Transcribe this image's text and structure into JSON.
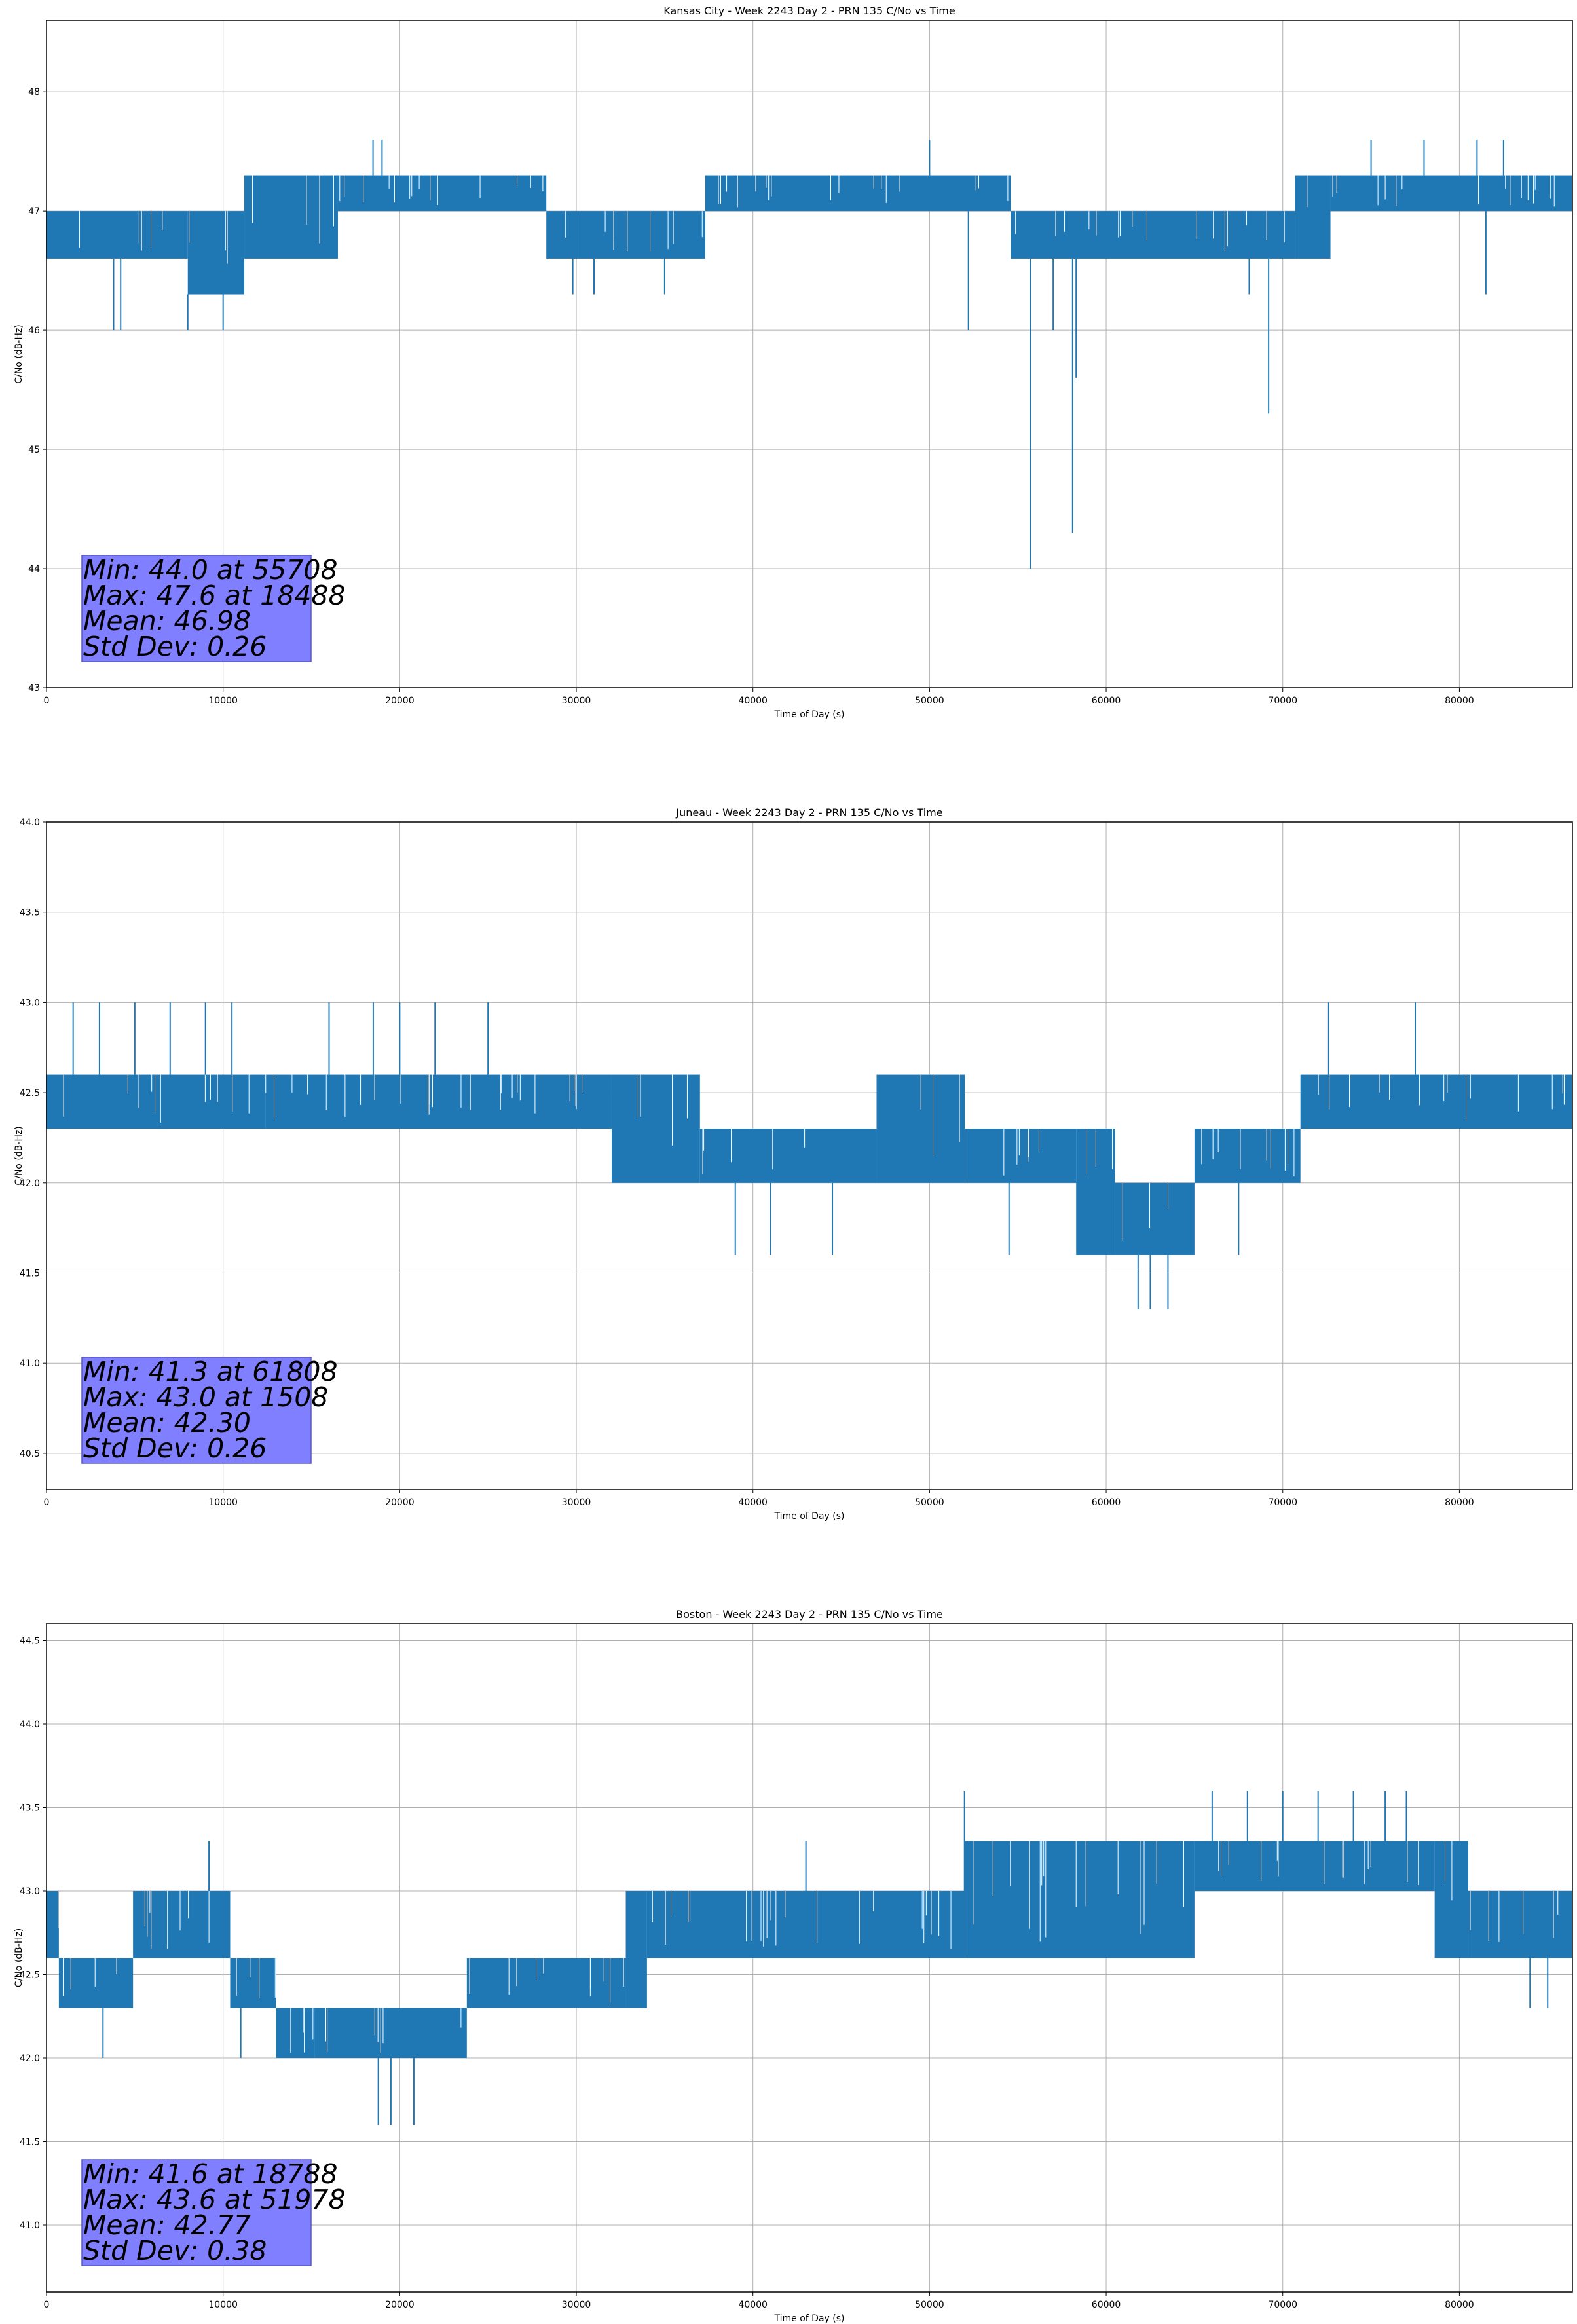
{
  "chart_data": [
    {
      "type": "line",
      "title": "Kansas City - Week 2243 Day 2 - PRN 135 C/No vs Time",
      "xlabel": "Time of Day (s)",
      "ylabel": "C/No (dB-Hz)",
      "xlim": [
        0,
        86400
      ],
      "ylim": [
        43.0,
        48.6
      ],
      "xticks": [
        0,
        10000,
        20000,
        30000,
        40000,
        50000,
        60000,
        70000,
        80000
      ],
      "yticks": [
        43,
        44,
        45,
        46,
        47,
        48
      ],
      "grid": true,
      "color": "#1f77b4",
      "band_segments": [
        {
          "x": [
            0,
            8000
          ],
          "low": 46.6,
          "high": 47.0
        },
        {
          "x": [
            8000,
            11200
          ],
          "low": 46.3,
          "high": 47.0
        },
        {
          "x": [
            11200,
            16500
          ],
          "low": 46.6,
          "high": 47.3
        },
        {
          "x": [
            16500,
            28300
          ],
          "low": 47.0,
          "high": 47.3
        },
        {
          "x": [
            28300,
            30200
          ],
          "low": 46.6,
          "high": 47.0
        },
        {
          "x": [
            30200,
            37300
          ],
          "low": 46.6,
          "high": 47.0
        },
        {
          "x": [
            37300,
            52600
          ],
          "low": 47.0,
          "high": 47.3
        },
        {
          "x": [
            52600,
            54600
          ],
          "low": 47.0,
          "high": 47.3
        },
        {
          "x": [
            54600,
            70700
          ],
          "low": 46.6,
          "high": 47.0
        },
        {
          "x": [
            70700,
            72700
          ],
          "low": 46.6,
          "high": 47.3
        },
        {
          "x": [
            72700,
            86400
          ],
          "low": 47.0,
          "high": 47.3
        }
      ],
      "spikes": [
        {
          "x": 3800,
          "y": 46.0
        },
        {
          "x": 4200,
          "y": 46.0
        },
        {
          "x": 8000,
          "y": 46.0
        },
        {
          "x": 10000,
          "y": 46.0
        },
        {
          "x": 18488,
          "y": 47.6
        },
        {
          "x": 19000,
          "y": 47.6
        },
        {
          "x": 29800,
          "y": 46.3
        },
        {
          "x": 31000,
          "y": 46.3
        },
        {
          "x": 35000,
          "y": 46.3
        },
        {
          "x": 50000,
          "y": 47.6
        },
        {
          "x": 52200,
          "y": 46.0
        },
        {
          "x": 55708,
          "y": 44.0
        },
        {
          "x": 57000,
          "y": 46.0
        },
        {
          "x": 58100,
          "y": 44.3
        },
        {
          "x": 58300,
          "y": 45.6
        },
        {
          "x": 69200,
          "y": 45.3
        },
        {
          "x": 68100,
          "y": 46.3
        },
        {
          "x": 75000,
          "y": 47.6
        },
        {
          "x": 78000,
          "y": 47.6
        },
        {
          "x": 81000,
          "y": 47.6
        },
        {
          "x": 82500,
          "y": 47.6
        },
        {
          "x": 81500,
          "y": 46.3
        }
      ],
      "stats": [
        "Min: 44.0 at 55708",
        "Max: 47.6 at 18488",
        "Mean: 46.98",
        "Std Dev: 0.26"
      ]
    },
    {
      "type": "line",
      "title": "Juneau - Week 2243 Day 2 - PRN 135 C/No vs Time",
      "xlabel": "Time of Day (s)",
      "ylabel": "C/No (dB-Hz)",
      "xlim": [
        0,
        86400
      ],
      "ylim": [
        40.3,
        44.0
      ],
      "xticks": [
        0,
        10000,
        20000,
        30000,
        40000,
        50000,
        60000,
        70000,
        80000
      ],
      "yticks": [
        40.5,
        41.0,
        41.5,
        42.0,
        42.5,
        43.0,
        43.5,
        44.0
      ],
      "ytick_labels": [
        "40.5",
        "41.0",
        "41.5",
        "42.0",
        "42.5",
        "43.0",
        "43.5",
        "44.0"
      ],
      "grid": true,
      "color": "#1f77b4",
      "band_segments": [
        {
          "x": [
            0,
            12400
          ],
          "low": 42.3,
          "high": 42.6
        },
        {
          "x": [
            12400,
            32000
          ],
          "low": 42.3,
          "high": 42.6
        },
        {
          "x": [
            32000,
            37000
          ],
          "low": 42.0,
          "high": 42.6
        },
        {
          "x": [
            37000,
            47000
          ],
          "low": 42.0,
          "high": 42.3
        },
        {
          "x": [
            47000,
            52000
          ],
          "low": 42.0,
          "high": 42.6
        },
        {
          "x": [
            52000,
            58300
          ],
          "low": 42.0,
          "high": 42.3
        },
        {
          "x": [
            58300,
            60500
          ],
          "low": 41.6,
          "high": 42.3
        },
        {
          "x": [
            60500,
            65000
          ],
          "low": 41.6,
          "high": 42.0
        },
        {
          "x": [
            65000,
            71000
          ],
          "low": 42.0,
          "high": 42.3
        },
        {
          "x": [
            71000,
            86400
          ],
          "low": 42.3,
          "high": 42.6
        }
      ],
      "spikes": [
        {
          "x": 1508,
          "y": 43.0
        },
        {
          "x": 3000,
          "y": 43.0
        },
        {
          "x": 5000,
          "y": 43.0
        },
        {
          "x": 7000,
          "y": 43.0
        },
        {
          "x": 9000,
          "y": 43.0
        },
        {
          "x": 10500,
          "y": 43.0
        },
        {
          "x": 16000,
          "y": 43.0
        },
        {
          "x": 18500,
          "y": 43.0
        },
        {
          "x": 20000,
          "y": 43.0
        },
        {
          "x": 22000,
          "y": 43.0
        },
        {
          "x": 25000,
          "y": 43.0
        },
        {
          "x": 39000,
          "y": 41.6
        },
        {
          "x": 41000,
          "y": 41.6
        },
        {
          "x": 44500,
          "y": 41.6
        },
        {
          "x": 54500,
          "y": 41.6
        },
        {
          "x": 61808,
          "y": 41.3
        },
        {
          "x": 62500,
          "y": 41.3
        },
        {
          "x": 63500,
          "y": 41.3
        },
        {
          "x": 72600,
          "y": 43.0
        },
        {
          "x": 77500,
          "y": 43.0
        },
        {
          "x": 67500,
          "y": 41.6
        }
      ],
      "stats": [
        "Min: 41.3 at 61808",
        "Max: 43.0 at 1508",
        "Mean: 42.30",
        "Std Dev: 0.26"
      ]
    },
    {
      "type": "line",
      "title": "Boston - Week 2243 Day 2 - PRN 135 C/No vs Time",
      "xlabel": "Time of Day (s)",
      "ylabel": "C/No (dB-Hz)",
      "xlim": [
        0,
        86400
      ],
      "ylim": [
        40.6,
        44.6
      ],
      "xticks": [
        0,
        10000,
        20000,
        30000,
        40000,
        50000,
        60000,
        70000,
        80000
      ],
      "yticks": [
        41.0,
        41.5,
        42.0,
        42.5,
        43.0,
        43.5,
        44.0,
        44.5
      ],
      "ytick_labels": [
        "41.0",
        "41.5",
        "42.0",
        "42.5",
        "43.0",
        "43.5",
        "44.0",
        "44.5"
      ],
      "grid": true,
      "color": "#1f77b4",
      "band_segments": [
        {
          "x": [
            0,
            700
          ],
          "low": 42.6,
          "high": 43.0
        },
        {
          "x": [
            700,
            4900
          ],
          "low": 42.3,
          "high": 42.6
        },
        {
          "x": [
            4900,
            10400
          ],
          "low": 42.6,
          "high": 43.0
        },
        {
          "x": [
            10400,
            13000
          ],
          "low": 42.3,
          "high": 42.6
        },
        {
          "x": [
            13000,
            15200
          ],
          "low": 42.0,
          "high": 42.3
        },
        {
          "x": [
            15200,
            23800
          ],
          "low": 42.0,
          "high": 42.3
        },
        {
          "x": [
            23800,
            32800
          ],
          "low": 42.3,
          "high": 42.6
        },
        {
          "x": [
            32800,
            34000
          ],
          "low": 42.3,
          "high": 43.0
        },
        {
          "x": [
            34000,
            52000
          ],
          "low": 42.6,
          "high": 43.0
        },
        {
          "x": [
            52000,
            65000
          ],
          "low": 42.6,
          "high": 43.3
        },
        {
          "x": [
            65000,
            78600
          ],
          "low": 43.0,
          "high": 43.3
        },
        {
          "x": [
            78600,
            80500
          ],
          "low": 42.6,
          "high": 43.3
        },
        {
          "x": [
            80500,
            86400
          ],
          "low": 42.6,
          "high": 43.0
        }
      ],
      "spikes": [
        {
          "x": 3200,
          "y": 42.0
        },
        {
          "x": 9200,
          "y": 43.3
        },
        {
          "x": 11000,
          "y": 42.0
        },
        {
          "x": 18788,
          "y": 41.6
        },
        {
          "x": 19500,
          "y": 41.6
        },
        {
          "x": 20800,
          "y": 41.6
        },
        {
          "x": 43000,
          "y": 43.3
        },
        {
          "x": 51978,
          "y": 43.6
        },
        {
          "x": 66000,
          "y": 43.6
        },
        {
          "x": 68000,
          "y": 43.6
        },
        {
          "x": 70000,
          "y": 43.6
        },
        {
          "x": 72000,
          "y": 43.6
        },
        {
          "x": 74000,
          "y": 43.6
        },
        {
          "x": 75800,
          "y": 43.6
        },
        {
          "x": 77000,
          "y": 43.6
        },
        {
          "x": 84000,
          "y": 42.3
        },
        {
          "x": 85000,
          "y": 42.3
        }
      ],
      "stats": [
        "Min: 41.6 at 18788",
        "Max: 43.6 at 51978",
        "Mean: 42.77",
        "Std Dev: 0.38"
      ]
    }
  ]
}
